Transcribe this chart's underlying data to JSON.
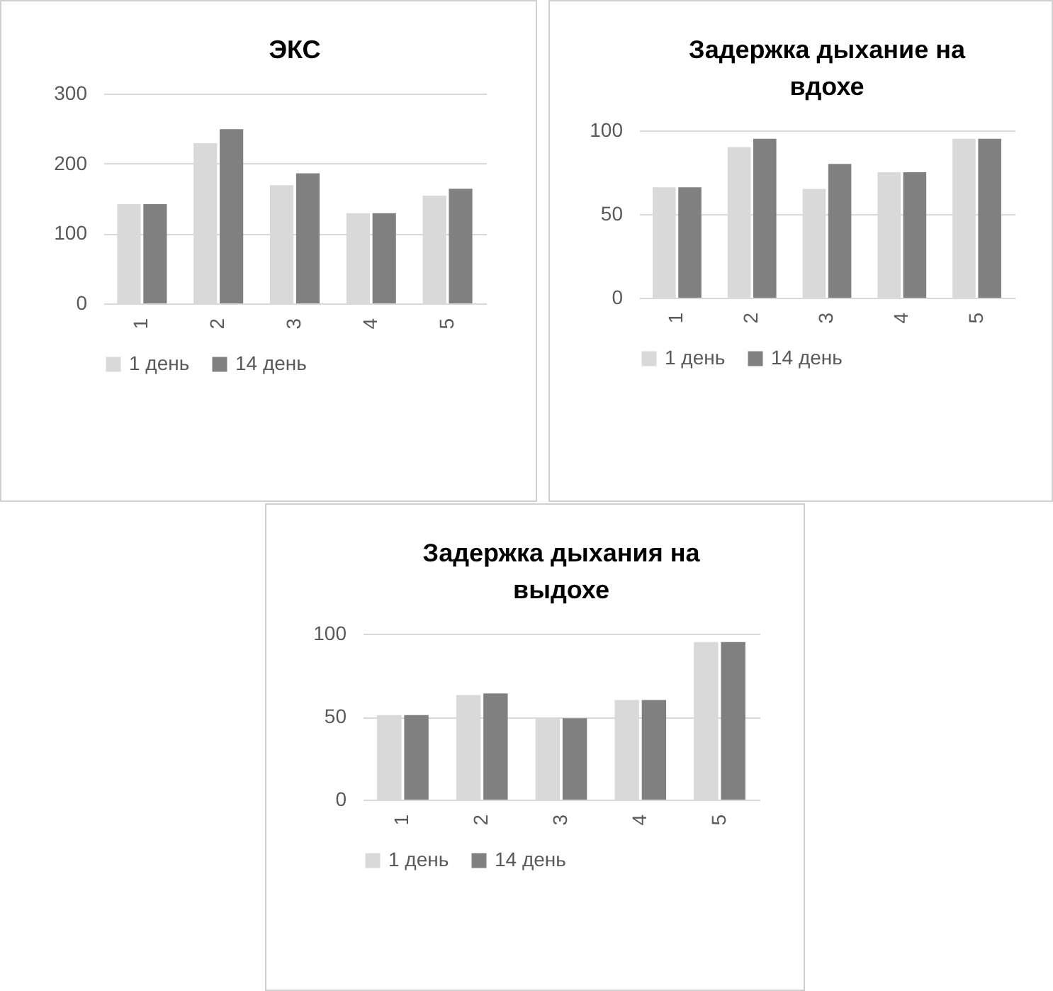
{
  "chart_data": [
    {
      "type": "bar",
      "title": "ЭКС",
      "categories": [
        "1",
        "2",
        "3",
        "4",
        "5"
      ],
      "series": [
        {
          "name": "1 день",
          "color": "#d9d9d9",
          "values": [
            142,
            229,
            169,
            129,
            154
          ]
        },
        {
          "name": "14 день",
          "color": "#808080",
          "values": [
            142,
            249,
            186,
            129,
            164
          ]
        }
      ],
      "ylim": [
        0,
        300
      ],
      "yticks": [
        0,
        100,
        200,
        300
      ],
      "grid": "y",
      "legend": "bottom"
    },
    {
      "type": "bar",
      "title": "Задержка дыхание на вдохе",
      "categories": [
        "1",
        "2",
        "3",
        "4",
        "5"
      ],
      "series": [
        {
          "name": "1 день",
          "color": "#d9d9d9",
          "values": [
            66,
            90,
            65,
            75,
            95
          ]
        },
        {
          "name": "14 день",
          "color": "#808080",
          "values": [
            66,
            95,
            80,
            75,
            95
          ]
        }
      ],
      "ylim": [
        0,
        100
      ],
      "yticks": [
        0,
        50,
        100
      ],
      "grid": "y",
      "legend": "bottom"
    },
    {
      "type": "bar",
      "title": "Задержка дыхания на выдохе",
      "categories": [
        "1",
        "2",
        "3",
        "4",
        "5"
      ],
      "series": [
        {
          "name": "1 день",
          "color": "#d9d9d9",
          "values": [
            51,
            63,
            49,
            60,
            95
          ]
        },
        {
          "name": "14 день",
          "color": "#808080",
          "values": [
            51,
            64,
            49,
            60,
            95
          ]
        }
      ],
      "ylim": [
        0,
        100
      ],
      "yticks": [
        0,
        50,
        100
      ],
      "grid": "y",
      "legend": "bottom"
    }
  ]
}
